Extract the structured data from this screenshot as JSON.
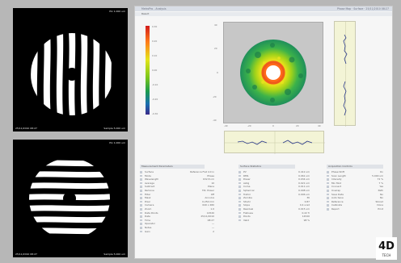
{
  "interferograms": [
    {
      "name": "vertical-fringes",
      "top_right": "Plx 1.000 um",
      "bottom_left": "25/11/2010 08:27",
      "bottom_right": "Sample 5.000 um"
    },
    {
      "name": "horizontal-fringes",
      "top_right": "Plx 1.000 um",
      "bottom_left": "25/11/2010 08:27",
      "bottom_right": "Sample 5.000 um"
    }
  ],
  "app": {
    "title_left": "MetroPro  -  Analysis",
    "title_right": "Phase Map  ·  Surface  ·  25/11/2010 08:27",
    "panel_label": "Result"
  },
  "colorbar": {
    "labels": [
      "0.30",
      "0.20",
      "0.10",
      "0.00",
      "-0.10",
      "-0.20",
      "-0.30"
    ],
    "colors": [
      "#d21a1a",
      "#ff7a1a",
      "#e5e51a",
      "#7cc71a",
      "#1a9a4e",
      "#1a6fb0",
      "#3a2a8a"
    ]
  },
  "map": {
    "y_ticks": [
      "40",
      "20",
      "0",
      "-20",
      "-40"
    ],
    "x_ticks": [
      "-40",
      "-20",
      "0",
      "20",
      "40"
    ]
  },
  "tables": [
    {
      "header": "Measurement Parameters",
      "rows": [
        [
          "Surface",
          "Reference Flat 4.0 in"
        ],
        [
          "Mode",
          "Phase"
        ],
        [
          "Wavelength",
          "632.8 nm"
        ],
        [
          "Average",
          "10"
        ],
        [
          "Subtract",
          "Plane"
        ],
        [
          "Remove",
          "Tilt, Power"
        ],
        [
          "Filter",
          "Off"
        ],
        [
          "Mask",
          "Annulus"
        ],
        [
          "Pixel",
          "0.250 mm"
        ],
        [
          "Camera",
          "640 x 480"
        ],
        [
          "Zoom",
          "1.0"
        ],
        [
          "Data Points",
          "14520"
        ],
        [
          "Date",
          "25/11/2010"
        ],
        [
          "Time",
          "08:27"
        ],
        [
          "Operator",
          "---"
        ],
        [
          "Notes",
          "---"
        ],
        [
          "Gain",
          "2"
        ]
      ]
    },
    {
      "header": "Surface Statistics",
      "rows": [
        [
          "PV",
          "0.412 um"
        ],
        [
          "RMS",
          "0.061 um"
        ],
        [
          "Power",
          "0.034 um"
        ],
        [
          "Astig",
          "0.021 um"
        ],
        [
          "Coma",
          "0.011 um"
        ],
        [
          "Spherical",
          "0.008 um"
        ],
        [
          "Trefoil",
          "0.006 um"
        ],
        [
          "Zernike",
          "36"
        ],
        [
          "Strehl",
          "0.87"
        ],
        [
          "Slope",
          "0.4 urad"
        ],
        [
          "Residual",
          "0.015 um"
        ],
        [
          "Flatness",
          "0.22 fr"
        ],
        [
          "Points",
          "14520"
        ],
        [
          "Valid",
          "98 %"
        ]
      ]
    },
    {
      "header": "Acquisition Controls",
      "rows": [
        [
          "Phase Shift",
          "On"
        ],
        [
          "Scan Length",
          "5.000 um"
        ],
        [
          "Intensity",
          "72 %"
        ],
        [
          "Min Mod",
          "7 %"
        ],
        [
          "Connect",
          "Yes"
        ],
        [
          "Unwrap",
          "Path"
        ],
        [
          "Save Data",
          "No"
        ],
        [
          "Auto Save",
          "No"
        ],
        [
          "Reference",
          "Stored"
        ],
        [
          "Calibrate",
          "Done"
        ],
        [
          "Report",
          "Print"
        ]
      ]
    }
  ],
  "logo": {
    "text": "4D",
    "subtitle": "TECH"
  }
}
